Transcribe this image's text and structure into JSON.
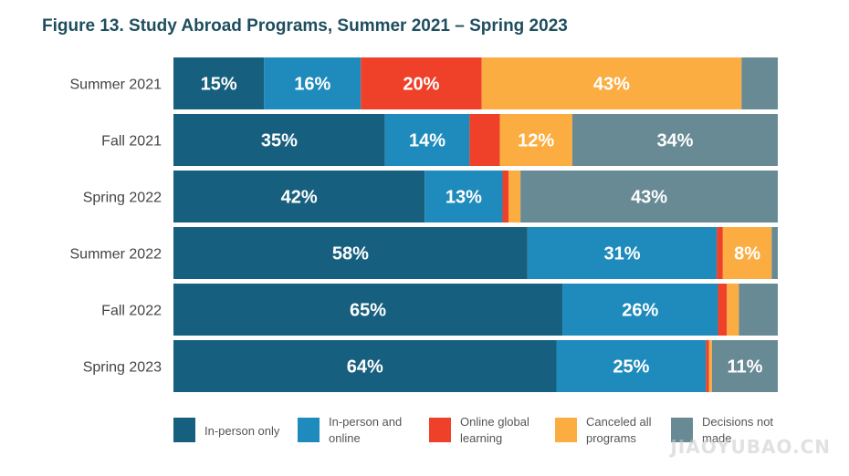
{
  "title": "Figure 13. Study Abroad Programs, Summer 2021 – Spring 2023",
  "colors": {
    "In-person only": "#175f7e",
    "In-person and online": "#1f8bbc",
    "Online global learning": "#ef4129",
    "Canceled all programs": "#fbad41",
    "Decisions not made": "#688a95"
  },
  "chart_data": {
    "type": "bar",
    "orientation": "horizontal",
    "stacked": true,
    "categories": [
      "Summer 2021",
      "Fall 2021",
      "Spring 2022",
      "Summer 2022",
      "Fall 2022",
      "Spring 2023"
    ],
    "series": [
      {
        "name": "In-person only",
        "values": [
          15,
          35,
          42,
          58,
          65,
          64
        ]
      },
      {
        "name": "In-person and online",
        "values": [
          16,
          14,
          13,
          31,
          26,
          25
        ]
      },
      {
        "name": "Online global learning",
        "values": [
          20,
          5,
          1,
          1,
          1.5,
          0.5
        ]
      },
      {
        "name": "Canceled all programs",
        "values": [
          43,
          12,
          2,
          8,
          2,
          0.5
        ]
      },
      {
        "name": "Decisions not made",
        "values": [
          6,
          34,
          43,
          1,
          6.5,
          11
        ]
      }
    ],
    "data_labels": [
      [
        "15%",
        "16%",
        "20%",
        "43%",
        ""
      ],
      [
        "35%",
        "14%",
        "",
        "12%",
        "34%"
      ],
      [
        "42%",
        "13%",
        "",
        "",
        "43%"
      ],
      [
        "58%",
        "31%",
        "",
        "8%",
        ""
      ],
      [
        "65%",
        "26%",
        "",
        "",
        ""
      ],
      [
        "64%",
        "25%",
        "",
        "",
        "11%"
      ]
    ],
    "xlim": [
      0,
      100
    ],
    "legend_position": "bottom",
    "grid": false
  },
  "legend": [
    {
      "label_lines": [
        "In-person only"
      ]
    },
    {
      "label_lines": [
        "In-person and",
        "online"
      ]
    },
    {
      "label_lines": [
        "Online global",
        "learning"
      ]
    },
    {
      "label_lines": [
        "Canceled all",
        "programs"
      ]
    },
    {
      "label_lines": [
        "Decisions not",
        "made"
      ]
    }
  ],
  "watermark": {
    "text": "JIAOYUBAO.CN"
  }
}
